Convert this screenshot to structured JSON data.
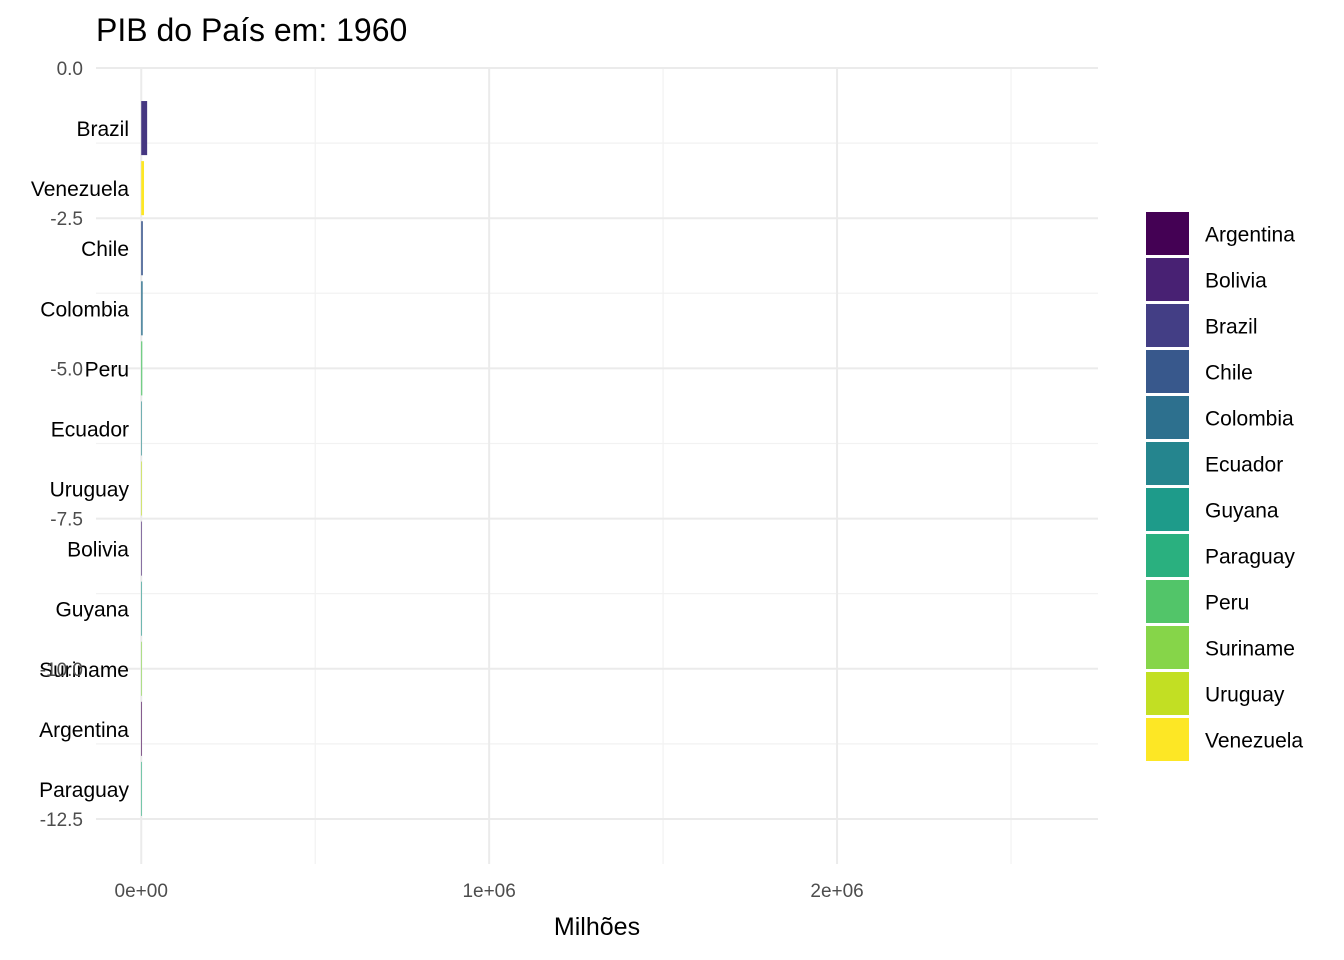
{
  "chart_data": {
    "type": "bar",
    "orientation": "horizontal",
    "title": "PIB do País em: 1960",
    "xlabel": "Milhões",
    "ylabel": "",
    "xlim": [
      -130000,
      2750000
    ],
    "ylim": [
      -13.25,
      0.0
    ],
    "x_ticks": [
      0,
      1000000,
      2000000
    ],
    "x_tick_labels": [
      "0e+00",
      "1e+06",
      "2e+06"
    ],
    "y_ticks": [
      0,
      -2.5,
      -5,
      -7.5,
      -10,
      -12.5
    ],
    "y_tick_labels": [
      "0.0",
      "-2.5",
      "-5.0",
      "-7.5",
      "-10.0",
      "-12.5"
    ],
    "grid": true,
    "legend_position": "right",
    "bars": [
      {
        "country": "Brazil",
        "rank": -1,
        "value": 17000,
        "color": "#453781"
      },
      {
        "country": "Venezuela",
        "rank": -2,
        "value": 8000,
        "color": "#fde725"
      },
      {
        "country": "Chile",
        "rank": -3,
        "value": 4500,
        "color": "#39568c"
      },
      {
        "country": "Colombia",
        "rank": -4,
        "value": 4000,
        "color": "#2d708e"
      },
      {
        "country": "Peru",
        "rank": -5,
        "value": 3000,
        "color": "#52c569"
      },
      {
        "country": "Ecuador",
        "rank": -6,
        "value": 1500,
        "color": "#238a8d"
      },
      {
        "country": "Uruguay",
        "rank": -7,
        "value": 1500,
        "color": "#c2df23"
      },
      {
        "country": "Bolivia",
        "rank": -8,
        "value": 800,
        "color": "#482173"
      },
      {
        "country": "Guyana",
        "rank": -9,
        "value": 200,
        "color": "#1f988b"
      },
      {
        "country": "Suriname",
        "rank": -10,
        "value": 150,
        "color": "#86d549"
      },
      {
        "country": "Argentina",
        "rank": -11,
        "value": 100,
        "color": "#440154"
      },
      {
        "country": "Paraguay",
        "rank": -12,
        "value": 100,
        "color": "#2ab07f"
      }
    ],
    "legend": [
      {
        "name": "Argentina",
        "color": "#440154"
      },
      {
        "name": "Bolivia",
        "color": "#482173"
      },
      {
        "name": "Brazil",
        "color": "#433e85"
      },
      {
        "name": "Chile",
        "color": "#38588c"
      },
      {
        "name": "Colombia",
        "color": "#2d708e"
      },
      {
        "name": "Ecuador",
        "color": "#25858e"
      },
      {
        "name": "Guyana",
        "color": "#1e9b8a"
      },
      {
        "name": "Paraguay",
        "color": "#2ab07f"
      },
      {
        "name": "Peru",
        "color": "#52c569"
      },
      {
        "name": "Suriname",
        "color": "#86d549"
      },
      {
        "name": "Uruguay",
        "color": "#c2df23"
      },
      {
        "name": "Venezuela",
        "color": "#fde725"
      }
    ]
  }
}
